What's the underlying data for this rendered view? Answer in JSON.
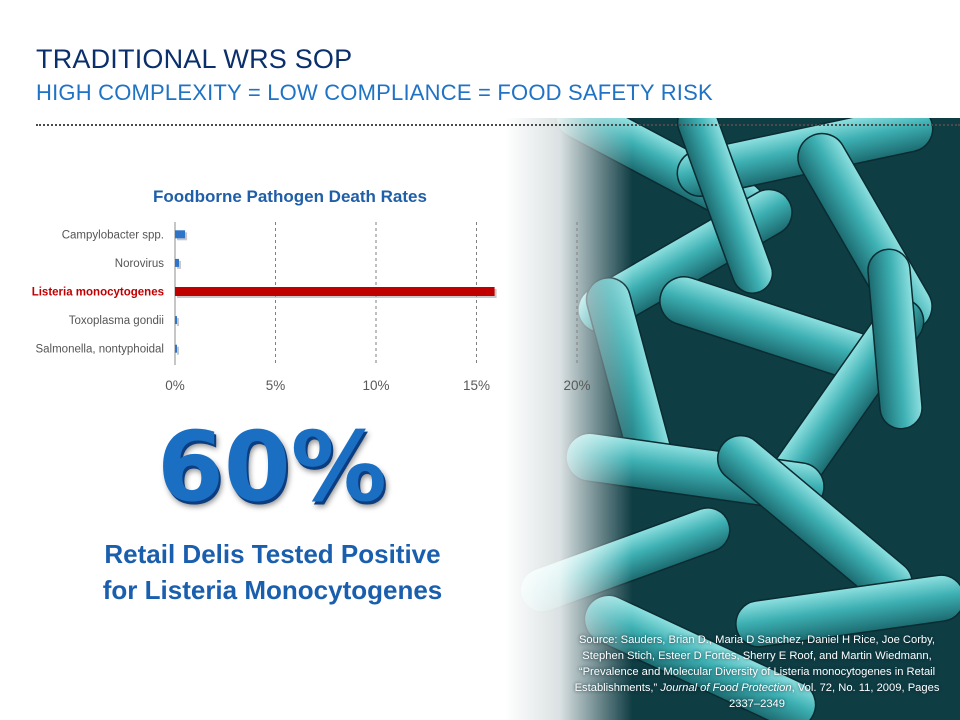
{
  "header": {
    "title": "TRADITIONAL WRS SOP",
    "subtitle": "HIGH COMPLEXITY = LOW COMPLIANCE = FOOD SAFETY RISK"
  },
  "chart_data": {
    "type": "bar",
    "orientation": "horizontal",
    "title": "Foodborne Pathogen Death Rates",
    "categories": [
      "Campylobacter spp.",
      "Norovirus",
      "Listeria monocytogenes",
      "Toxoplasma gondii",
      "Salmonella, nontyphoidal"
    ],
    "values": [
      0.5,
      0.2,
      15.9,
      0.1,
      0.1
    ],
    "highlight": "Listeria monocytogenes",
    "xlim": [
      0,
      20
    ],
    "xticks": [
      "0%",
      "5%",
      "10%",
      "15%",
      "20%"
    ],
    "grid": true,
    "colors": {
      "default": "#2e75c9",
      "highlight": "#c00000"
    }
  },
  "stat": {
    "value": "60%",
    "caption_line1": "Retail Delis Tested Positive",
    "caption_line2": "for Listeria Monocytogenes"
  },
  "source": {
    "text1": "Source: Sauders, Brian D., Maria D Sanchez, Daniel H Rice, Joe Corby, Stephen Stich, Esteer D Fortes, Sherry E Roof, and Martin Wiedmann, “Prevalence and Molecular Diversity of Listeria monocytogenes in Retail Establishments,”",
    "journal": "Journal of Food Protection",
    "text2": ", Vol. 72, No. 11, 2009, Pages 2337–2349"
  },
  "image": {
    "icon": "bacteria-micrograph",
    "color": "#3fb1b6"
  }
}
